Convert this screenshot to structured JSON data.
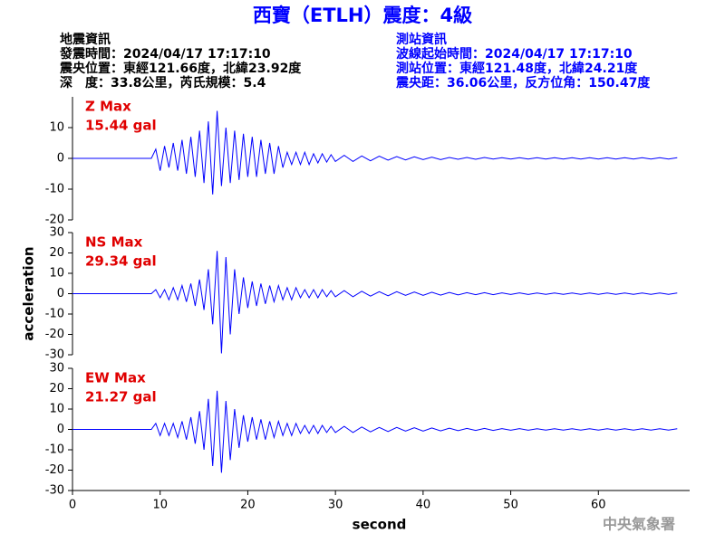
{
  "header": {
    "title": "西寶（ETLH）震度：4級",
    "left": [
      "地震資訊",
      "發震時間：2024/04/17 17:17:10",
      "震央位置：東經121.66度，北緯23.92度",
      "深　度：33.8公里，芮氏規模：5.4"
    ],
    "right": [
      "測站資訊",
      "波線起始時間：2024/04/17 17:17:10",
      "測站位置：東經121.48度，北緯24.21度",
      "震央距：36.06公里，反方位角：150.47度"
    ],
    "footer": "中央氣象署"
  },
  "chart_data": [
    {
      "type": "line",
      "color": "#0000ff",
      "label_color": "#e00000",
      "labels": [
        "Z Max",
        "15.44 gal"
      ],
      "xlim": [
        0,
        70
      ],
      "ylim": [
        -20,
        20
      ],
      "yticks": [
        -20,
        -10,
        0,
        10
      ],
      "x": [
        0,
        9,
        9.5,
        10,
        10.5,
        11,
        11.5,
        12,
        12.5,
        13,
        13.5,
        14,
        14.5,
        15,
        15.5,
        16,
        16.5,
        17,
        17.5,
        18,
        18.5,
        19,
        19.5,
        20,
        20.5,
        21,
        21.5,
        22,
        22.5,
        23,
        23.5,
        24,
        24.5,
        25,
        25.5,
        26,
        26.5,
        27,
        27.5,
        28,
        28.5,
        29,
        29.5,
        30,
        31,
        32,
        33,
        34,
        35,
        36,
        37,
        38,
        39,
        40,
        41,
        42,
        43,
        44,
        45,
        46,
        47,
        48,
        49,
        50,
        51,
        52,
        53,
        54,
        55,
        56,
        57,
        58,
        59,
        60,
        61,
        62,
        63,
        64,
        65,
        66,
        67,
        68,
        69
      ],
      "values": [
        0,
        0,
        3,
        -4,
        4,
        -3,
        5,
        -4,
        6,
        -5,
        7,
        -6,
        9,
        -8,
        12,
        -11.7,
        15.44,
        -9,
        10,
        -8,
        9,
        -7,
        8,
        -6,
        7,
        -6,
        6,
        -5,
        5,
        -5,
        4,
        -3,
        2,
        -2,
        2,
        -2,
        2,
        -2,
        1.5,
        -1.5,
        1.5,
        -1.2,
        1.2,
        -1,
        1,
        -1,
        0.8,
        -0.8,
        0.7,
        -0.6,
        0.6,
        -0.5,
        0.5,
        -0.4,
        0.4,
        -0.4,
        0.3,
        -0.3,
        0.3,
        -0.3,
        0.3,
        -0.2,
        0.2,
        -0.2,
        0.2,
        -0.2,
        0.2,
        -0.2,
        0.2,
        -0.2,
        0.2,
        -0.2,
        0.2,
        -0.2,
        0.2,
        -0.2,
        0.2,
        -0.2,
        0.2,
        -0.2,
        0.2,
        -0.2,
        0.2
      ]
    },
    {
      "type": "line",
      "color": "#0000ff",
      "label_color": "#e00000",
      "labels": [
        "NS Max",
        "29.34 gal"
      ],
      "ylabel": "acceleration",
      "xlim": [
        0,
        70
      ],
      "ylim": [
        -30,
        30
      ],
      "yticks": [
        -30,
        -20,
        -10,
        0,
        10,
        20,
        30
      ],
      "x": [
        0,
        9,
        9.5,
        10,
        10.5,
        11,
        11.5,
        12,
        12.5,
        13,
        13.5,
        14,
        14.5,
        15,
        15.5,
        16,
        16.5,
        17,
        17.5,
        18,
        18.5,
        19,
        19.5,
        20,
        20.5,
        21,
        21.5,
        22,
        22.5,
        23,
        23.5,
        24,
        24.5,
        25,
        25.5,
        26,
        26.5,
        27,
        27.5,
        28,
        28.5,
        29,
        29.5,
        30,
        31,
        32,
        33,
        34,
        35,
        36,
        37,
        38,
        39,
        40,
        41,
        42,
        43,
        44,
        45,
        46,
        47,
        48,
        49,
        50,
        51,
        52,
        53,
        54,
        55,
        56,
        57,
        58,
        59,
        60,
        61,
        62,
        63,
        64,
        65,
        66,
        67,
        68,
        69
      ],
      "values": [
        0,
        0,
        2,
        -2,
        2,
        -3,
        3,
        -3,
        4,
        -4,
        5,
        -6,
        7,
        -8,
        12,
        -15,
        21,
        -29.34,
        18,
        -20,
        12,
        -10,
        8,
        -7,
        6,
        -6,
        5,
        -5,
        4,
        -4,
        4,
        -3,
        3,
        -3,
        3,
        -2,
        2,
        -2,
        2,
        -2,
        2,
        -1.5,
        1.5,
        -1.5,
        1.5,
        -1.5,
        1.2,
        -1.2,
        1,
        -1,
        1,
        -0.8,
        0.8,
        -0.8,
        0.7,
        -0.7,
        0.6,
        -0.6,
        0.5,
        -0.5,
        0.5,
        -0.5,
        0.4,
        -0.4,
        0.4,
        -0.4,
        0.3,
        -0.3,
        0.3,
        -0.3,
        0.3,
        -0.3,
        0.3,
        -0.3,
        0.3,
        -0.3,
        0.3,
        -0.3,
        0.3,
        -0.3,
        0.3,
        -0.3,
        0.3
      ]
    },
    {
      "type": "line",
      "color": "#0000ff",
      "label_color": "#e00000",
      "labels": [
        "EW Max",
        "21.27 gal"
      ],
      "xlabel": "second",
      "xlim": [
        0,
        70
      ],
      "ylim": [
        -30,
        30
      ],
      "yticks": [
        -30,
        -20,
        -10,
        0,
        10,
        20,
        30
      ],
      "xticks": [
        0,
        10,
        20,
        30,
        40,
        50,
        60
      ],
      "x": [
        0,
        9,
        9.5,
        10,
        10.5,
        11,
        11.5,
        12,
        12.5,
        13,
        13.5,
        14,
        14.5,
        15,
        15.5,
        16,
        16.5,
        17,
        17.5,
        18,
        18.5,
        19,
        19.5,
        20,
        20.5,
        21,
        21.5,
        22,
        22.5,
        23,
        23.5,
        24,
        24.5,
        25,
        25.5,
        26,
        26.5,
        27,
        27.5,
        28,
        28.5,
        29,
        29.5,
        30,
        31,
        32,
        33,
        34,
        35,
        36,
        37,
        38,
        39,
        40,
        41,
        42,
        43,
        44,
        45,
        46,
        47,
        48,
        49,
        50,
        51,
        52,
        53,
        54,
        55,
        56,
        57,
        58,
        59,
        60,
        61,
        62,
        63,
        64,
        65,
        66,
        67,
        68,
        69
      ],
      "values": [
        0,
        0,
        3,
        -3,
        3,
        -3,
        3,
        -4,
        4,
        -5,
        6,
        -7,
        9,
        -10,
        15,
        -18,
        19,
        -21.27,
        14,
        -15,
        10,
        -9,
        7,
        -6,
        6,
        -5,
        5,
        -5,
        4,
        -4,
        4,
        -3,
        3,
        -3,
        3,
        -2,
        2,
        -2,
        2,
        -2,
        2,
        -1.5,
        1.5,
        -1.5,
        1.5,
        -1.5,
        1.2,
        -1.2,
        1,
        -1,
        1,
        -0.8,
        0.8,
        -0.8,
        0.7,
        -0.7,
        0.6,
        -0.6,
        0.5,
        -0.5,
        0.5,
        -0.5,
        0.4,
        -0.4,
        0.4,
        -0.4,
        0.3,
        -0.3,
        0.3,
        -0.3,
        0.3,
        -0.3,
        0.3,
        -0.3,
        0.3,
        -0.3,
        0.3,
        -0.3,
        0.3,
        -0.3,
        0.3,
        -0.3,
        0.3
      ]
    }
  ]
}
